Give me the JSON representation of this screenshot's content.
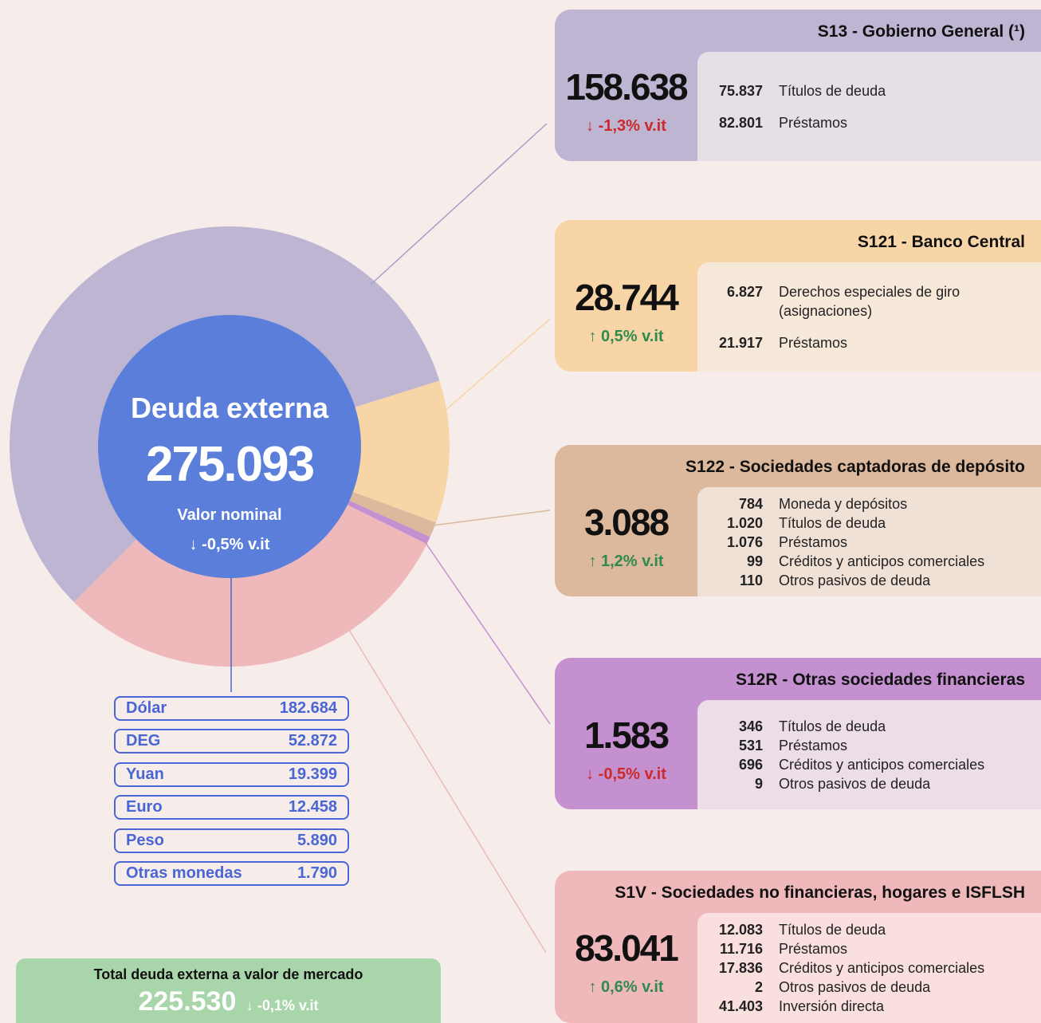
{
  "chart_data": {
    "type": "donut",
    "title": "Deuda externa",
    "total": "275.093",
    "subtitle": "Valor nominal",
    "change": "↓ -0,5% v.it",
    "categories": [
      "S13 - Gobierno General (¹)",
      "S121 - Banco Central",
      "S122 - Sociedades captadoras de depósito",
      "S12R - Otras sociedades financieras",
      "S1V - Sociedades no financieras, hogares e ISFLSH"
    ],
    "values": [
      158638,
      28744,
      3088,
      1583,
      83041
    ],
    "value_labels": [
      "158.638",
      "28.744",
      "3.088",
      "1.583",
      "83.041"
    ],
    "colors": [
      "#bdb5d2",
      "#f8d5a7",
      "#dcb99c",
      "#c490d0",
      "#efb9bb"
    ],
    "body_colors": [
      "#e6dfe8",
      "#f7e9da",
      "#f0e1d7",
      "#ecdde9",
      "#f9dfde"
    ],
    "changes": [
      "↓ -1,3% v.it",
      "↑ 0,5% v.it",
      "↑ 1,2% v.it",
      "↓ -0,5% v.it",
      "↑ 0,6% v.it"
    ],
    "change_colors": [
      "#cc2a2a",
      "#2f8a4f",
      "#2f8a4f",
      "#cc2a2a",
      "#2f8a4f"
    ],
    "breakdowns": [
      [
        {
          "value": "75.837",
          "text": "Títulos de deuda"
        },
        {
          "value": "82.801",
          "text": "Préstamos"
        }
      ],
      [
        {
          "value": "6.827",
          "text": "Derechos especiales de giro (asignaciones)"
        },
        {
          "value": "21.917",
          "text": "Préstamos"
        }
      ],
      [
        {
          "value": "784",
          "text": "Moneda y depósitos"
        },
        {
          "value": "1.020",
          "text": "Títulos de deuda"
        },
        {
          "value": "1.076",
          "text": "Préstamos"
        },
        {
          "value": "99",
          "text": "Créditos y anticipos comerciales"
        },
        {
          "value": "110",
          "text": "Otros pasivos de deuda"
        }
      ],
      [
        {
          "value": "346",
          "text": "Títulos de deuda"
        },
        {
          "value": "531",
          "text": "Préstamos"
        },
        {
          "value": "696",
          "text": "Créditos y anticipos comerciales"
        },
        {
          "value": "9",
          "text": "Otros pasivos de deuda"
        }
      ],
      [
        {
          "value": "12.083",
          "text": "Títulos de deuda"
        },
        {
          "value": "11.716",
          "text": "Préstamos"
        },
        {
          "value": "17.836",
          "text": "Créditos y anticipos comerciales"
        },
        {
          "value": "2",
          "text": "Otros pasivos de deuda"
        },
        {
          "value": "41.403",
          "text": "Inversión directa"
        }
      ]
    ]
  },
  "currencies": {
    "names": [
      "Dólar",
      "DEG",
      "Yuan",
      "Euro",
      "Peso",
      "Otras monedas"
    ],
    "values": [
      "182.684",
      "52.872",
      "19.399",
      "12.458",
      "5.890",
      "1.790"
    ]
  },
  "market": {
    "title": "Total deuda externa a valor de mercado",
    "value": "225.530",
    "change": "↓ -0,1% v.it"
  }
}
